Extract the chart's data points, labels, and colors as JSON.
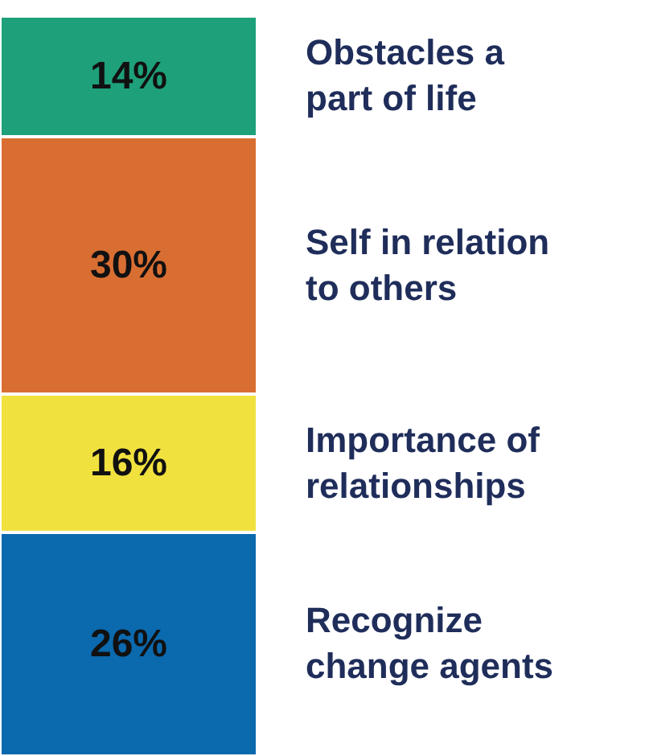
{
  "chart_data": {
    "type": "bar",
    "stacked": true,
    "categories": [
      null
    ],
    "legend": false,
    "series": [
      {
        "name": "Recognize\nchange agents",
        "color": "#0b69ae",
        "values": [
          26
        ],
        "value_labels": [
          "26%"
        ]
      },
      {
        "name": "Importance of\nrelationships",
        "color": "#f1e13f",
        "values": [
          16
        ],
        "value_labels": [
          "16%"
        ]
      },
      {
        "name": "Self in relation\nto others",
        "color": "#d96e32",
        "values": [
          30
        ],
        "value_labels": [
          "30%"
        ]
      },
      {
        "name": "Obstacles a\npart of life",
        "color": "#1ea07a",
        "values": [
          14
        ],
        "value_labels": [
          "14%"
        ]
      }
    ]
  }
}
